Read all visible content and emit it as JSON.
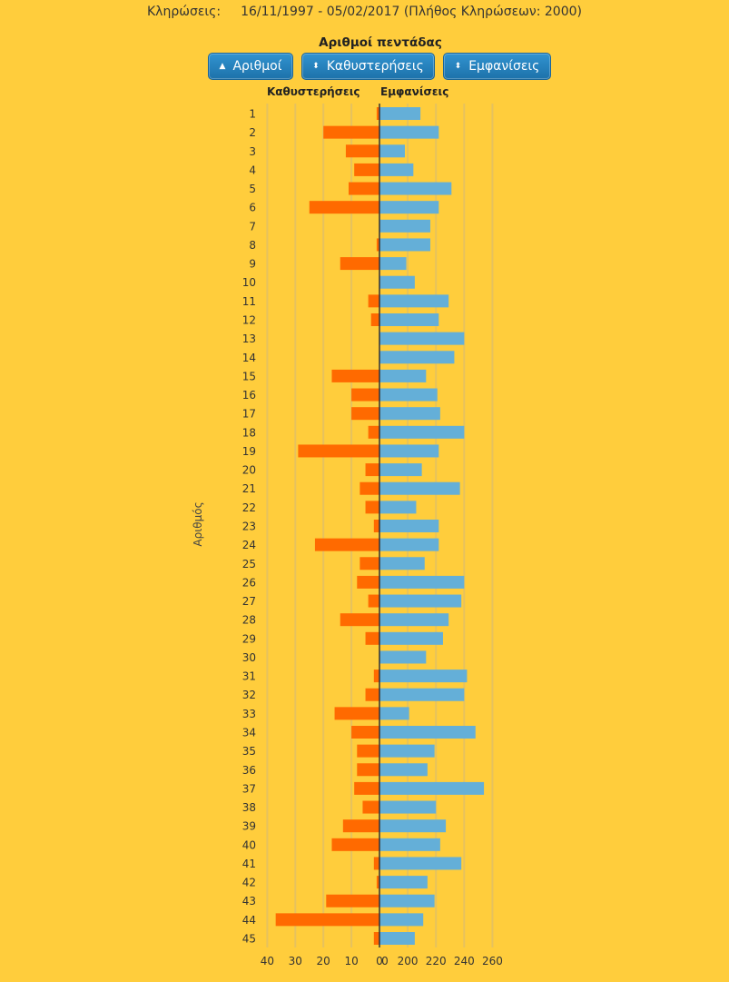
{
  "header": {
    "draws_label": "Κληρώσεις:",
    "draws_range": "16/11/1997 - 05/02/2017  (Πλήθος Κληρώσεων: 2000)"
  },
  "sort_buttons": [
    {
      "label": "Αριθμοί",
      "icon": "sort-asc-icon",
      "glyph": "▲"
    },
    {
      "label": "Καθυστερήσεις",
      "icon": "sort-both-icon",
      "glyph": "⬍"
    },
    {
      "label": "Εμφανίσεις",
      "icon": "sort-both-icon",
      "glyph": "⬍"
    }
  ],
  "colors": {
    "background": "#ffcd3c",
    "delays": "#ff6a00",
    "appearances": "#64afd8",
    "grid": "#e6c25e",
    "axis": "#333333"
  },
  "chart_data": {
    "type": "bar",
    "orientation": "horizontal-diverging",
    "title": "Αριθμοί πεντάδας",
    "ylabel": "Αριθμός",
    "categories": [
      "1",
      "2",
      "3",
      "4",
      "5",
      "6",
      "7",
      "8",
      "9",
      "10",
      "11",
      "12",
      "13",
      "14",
      "15",
      "16",
      "17",
      "18",
      "19",
      "20",
      "21",
      "22",
      "23",
      "24",
      "25",
      "26",
      "27",
      "28",
      "29",
      "30",
      "31",
      "32",
      "33",
      "34",
      "35",
      "36",
      "37",
      "38",
      "39",
      "40",
      "41",
      "42",
      "43",
      "44",
      "45"
    ],
    "series": [
      {
        "name": "Καθυστερήσεις",
        "side": "left",
        "xlim": [
          0,
          40
        ],
        "ticks": [
          "40",
          "30",
          "20",
          "10",
          "0"
        ],
        "tick_values": [
          40,
          30,
          20,
          10,
          0
        ],
        "values": [
          1,
          20,
          12,
          9,
          11,
          25,
          0,
          1,
          14,
          0,
          4,
          3,
          0,
          0,
          17,
          10,
          10,
          4,
          29,
          5,
          7,
          5,
          2,
          23,
          7,
          8,
          4,
          14,
          5,
          0,
          2,
          5,
          16,
          10,
          8,
          8,
          9,
          6,
          13,
          17,
          2,
          1,
          19,
          37,
          2
        ]
      },
      {
        "name": "Εμφανίσεις",
        "side": "right",
        "xlim": [
          180,
          260
        ],
        "ticks": [
          "0",
          "200",
          "220",
          "240",
          "260"
        ],
        "tick_values": [
          180,
          200,
          220,
          240,
          260
        ],
        "values": [
          209,
          222,
          198,
          204,
          231,
          222,
          216,
          216,
          199,
          205,
          229,
          222,
          240,
          233,
          213,
          221,
          223,
          240,
          222,
          210,
          237,
          206,
          222,
          222,
          212,
          240,
          238,
          229,
          225,
          213,
          242,
          240,
          201,
          248,
          219,
          214,
          254,
          220,
          227,
          223,
          238,
          214,
          219,
          211,
          205
        ]
      }
    ],
    "grid": true
  }
}
